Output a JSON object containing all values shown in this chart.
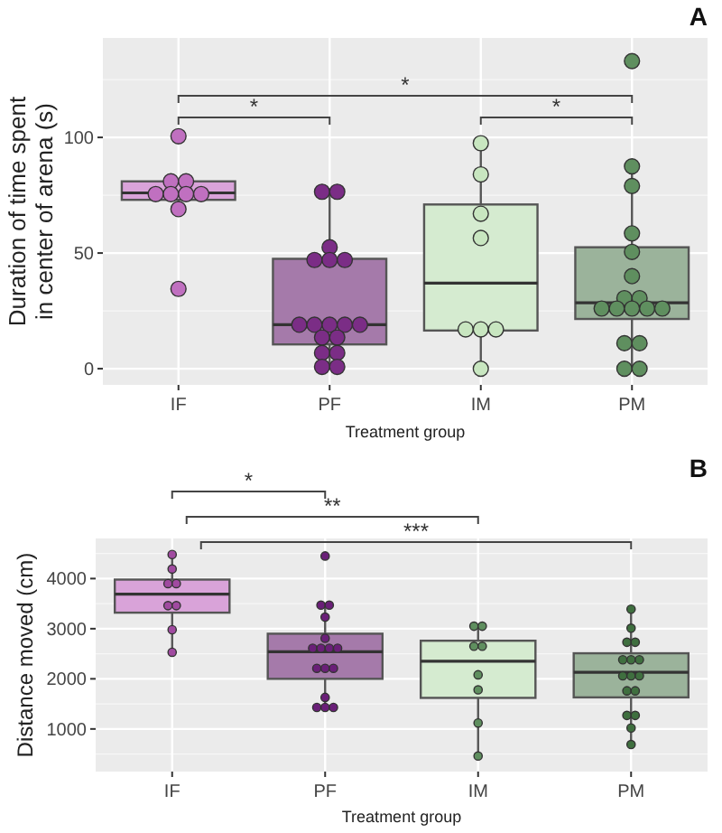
{
  "chart_data": [
    {
      "type": "box",
      "title": "A",
      "xlabel": "Treatment group",
      "ylabel": "Duration of time spent in center of arena (s)",
      "categories": [
        "IF",
        "PF",
        "IM",
        "PM"
      ],
      "ylim": [
        -7,
        143
      ],
      "yticks": [
        0,
        50,
        100
      ],
      "grid": true,
      "colors": [
        "#d9a3d9",
        "#a57aaa",
        "#d5ebd0",
        "#9bb39b"
      ],
      "boxes": [
        {
          "low": 69,
          "q1": 73,
          "median": 76,
          "q3": 81,
          "high": 81
        },
        {
          "low": 0.8,
          "q1": 10.5,
          "median": 19,
          "q3": 47.5,
          "high": 76.5
        },
        {
          "low": 0,
          "q1": 16.5,
          "median": 37,
          "q3": 71,
          "high": 97.5
        },
        {
          "low": 0,
          "q1": 21.5,
          "median": 28.5,
          "q3": 52.5,
          "high": 87.5
        }
      ],
      "annotations": [
        "*",
        "*",
        "*"
      ],
      "series": [
        {
          "type": "scatter",
          "color": "#c070c0",
          "x": [
            "IF",
            "IF",
            "IF",
            "IF",
            "IF",
            "IF",
            "IF",
            "IF",
            "IF"
          ],
          "values": [
            100.5,
            81,
            81,
            75.5,
            75.5,
            75.5,
            75.5,
            69,
            34.5
          ]
        },
        {
          "type": "scatter",
          "color": "#7b2d86",
          "x": [
            "PF",
            "PF",
            "PF",
            "PF",
            "PF",
            "PF",
            "PF",
            "PF",
            "PF",
            "PF",
            "PF",
            "PF",
            "PF",
            "PF",
            "PF",
            "PF",
            "PF"
          ],
          "values": [
            76.5,
            76.5,
            52.5,
            47,
            47,
            47,
            19,
            19,
            19,
            19,
            19,
            13.5,
            13.5,
            6.8,
            6.8,
            0.8,
            0.8
          ]
        },
        {
          "type": "scatter",
          "color": "#c8e6c0",
          "x": [
            "IM",
            "IM",
            "IM",
            "IM",
            "IM",
            "IM",
            "IM",
            "IM"
          ],
          "values": [
            97.5,
            84,
            67,
            56.5,
            17,
            17,
            17,
            0
          ]
        },
        {
          "type": "scatter",
          "color": "#5f8f5f",
          "x": [
            "PM",
            "PM",
            "PM",
            "PM",
            "PM",
            "PM",
            "PM",
            "PM",
            "PM",
            "PM",
            "PM",
            "PM",
            "PM",
            "PM",
            "PM",
            "PM",
            "PM"
          ],
          "values": [
            133,
            87.5,
            79,
            58.5,
            50.5,
            40,
            30.5,
            30.5,
            26,
            26,
            26,
            26,
            26,
            11,
            11,
            0,
            0
          ]
        }
      ]
    },
    {
      "type": "box",
      "title": "B",
      "xlabel": "Treatment group",
      "ylabel": "Distance moved (cm)",
      "categories": [
        "IF",
        "PF",
        "IM",
        "PM"
      ],
      "ylim": [
        150,
        4800
      ],
      "yticks": [
        1000,
        2000,
        3000,
        4000
      ],
      "grid": true,
      "colors": [
        "#d9a3d9",
        "#a57aaa",
        "#d5ebd0",
        "#9bb39b"
      ],
      "boxes": [
        {
          "low": 2530,
          "q1": 3320,
          "median": 3690,
          "q3": 3980,
          "high": 4480
        },
        {
          "low": 1430,
          "q1": 2000,
          "median": 2540,
          "q3": 2900,
          "high": 3470
        },
        {
          "low": 460,
          "q1": 1620,
          "median": 2350,
          "q3": 2760,
          "high": 3050
        },
        {
          "low": 690,
          "q1": 1630,
          "median": 2130,
          "q3": 2510,
          "high": 3390
        }
      ],
      "annotations": [
        "*",
        "**",
        "***"
      ],
      "series": [
        {
          "type": "scatter",
          "color": "#a04aa0",
          "x": [
            "IF",
            "IF",
            "IF",
            "IF",
            "IF",
            "IF",
            "IF",
            "IF"
          ],
          "values": [
            4480,
            4190,
            3900,
            3900,
            3460,
            3460,
            2980,
            2530
          ]
        },
        {
          "type": "scatter",
          "color": "#6a1f78",
          "x": [
            "PF",
            "PF",
            "PF",
            "PF",
            "PF",
            "PF",
            "PF",
            "PF",
            "PF",
            "PF",
            "PF",
            "PF",
            "PF",
            "PF",
            "PF",
            "PF"
          ],
          "values": [
            4450,
            3470,
            3470,
            3230,
            2810,
            2610,
            2610,
            2610,
            2610,
            2210,
            2210,
            2210,
            1630,
            1430,
            1430,
            1430
          ]
        },
        {
          "type": "scatter",
          "color": "#5f8f5f",
          "x": [
            "IM",
            "IM",
            "IM",
            "IM",
            "IM",
            "IM",
            "IM",
            "IM"
          ],
          "values": [
            3050,
            3050,
            2650,
            2650,
            2080,
            1780,
            1120,
            460
          ]
        },
        {
          "type": "scatter",
          "color": "#3f6f3f",
          "x": [
            "PM",
            "PM",
            "PM",
            "PM",
            "PM",
            "PM",
            "PM",
            "PM",
            "PM",
            "PM",
            "PM",
            "PM",
            "PM",
            "PM",
            "PM",
            "PM"
          ],
          "values": [
            3390,
            3010,
            2730,
            2730,
            2380,
            2380,
            2380,
            2060,
            2060,
            2060,
            1760,
            1760,
            1270,
            1270,
            1020,
            690
          ]
        }
      ]
    }
  ]
}
